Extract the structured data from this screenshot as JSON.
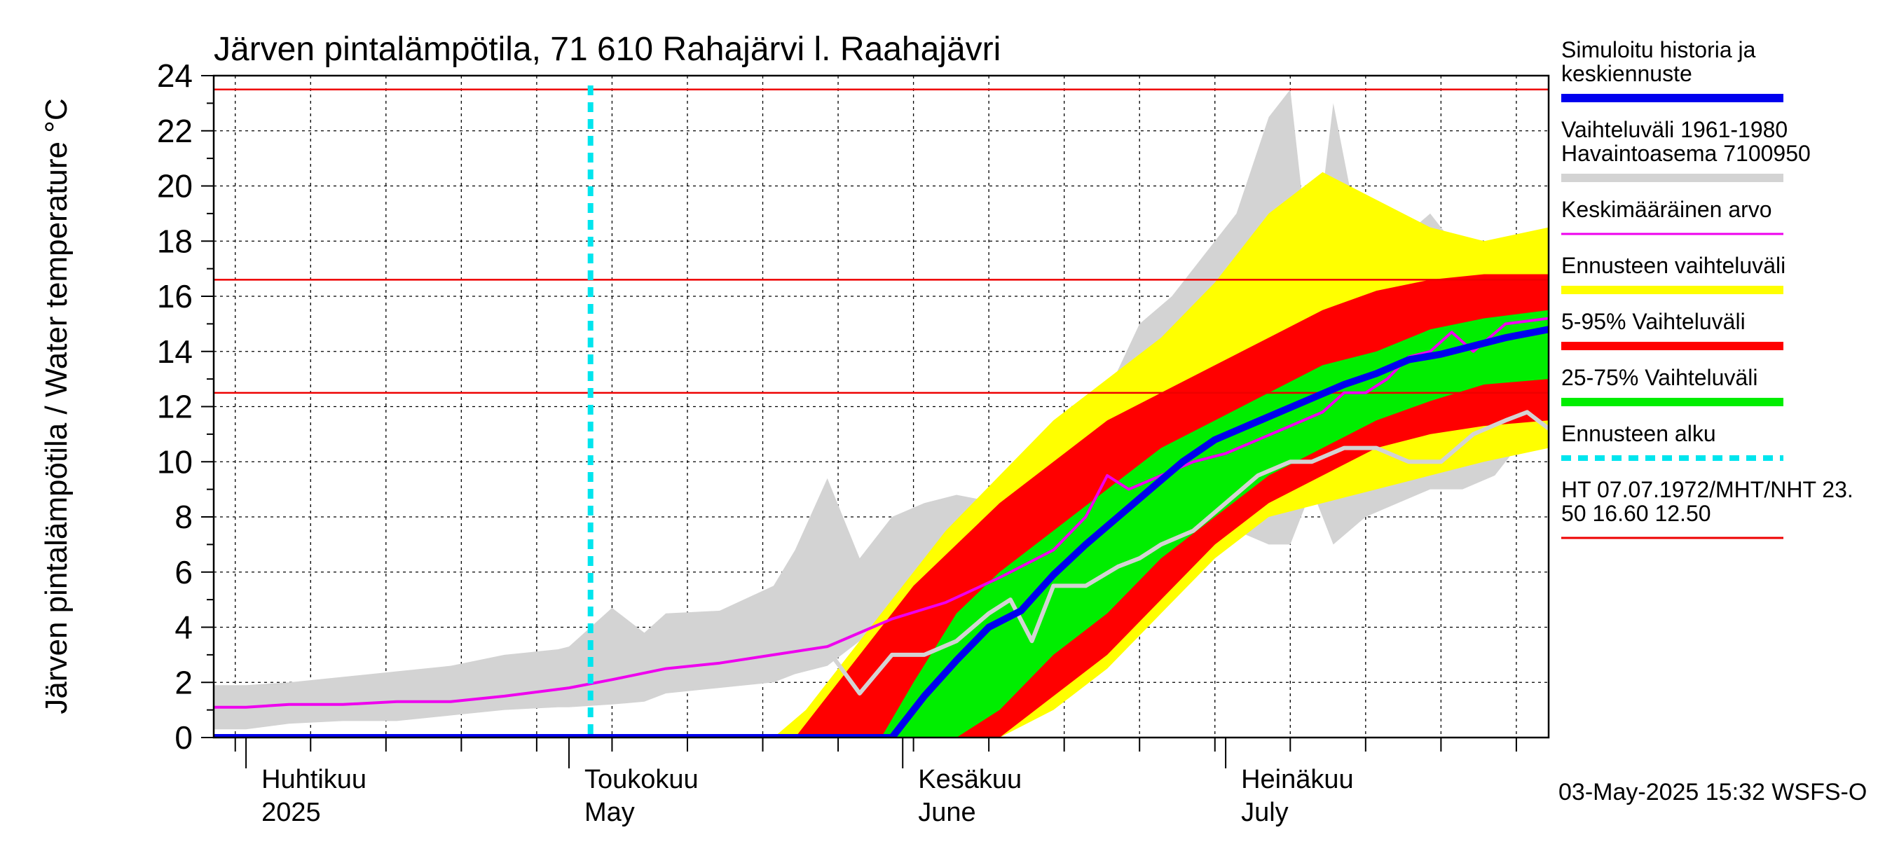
{
  "chart_data": {
    "type": "area",
    "title": "Järven pintalämpötila, 71 610 Rahajärvi l. Raahajävri",
    "ylabel": "Järven pintalämpötila / Water temperature °C",
    "ylim": [
      0,
      24
    ],
    "yticks": [
      0,
      2,
      4,
      6,
      8,
      10,
      12,
      14,
      16,
      18,
      20,
      22,
      24
    ],
    "xlim": [
      "2025-03-29",
      "2025-07-31"
    ],
    "grid": true,
    "months": [
      {
        "date": "2025-04-01",
        "fi": "Huhtikuu",
        "en": "2025"
      },
      {
        "date": "2025-05-01",
        "fi": "Toukokuu",
        "en": "May"
      },
      {
        "date": "2025-06-01",
        "fi": "Kesäkuu",
        "en": "June"
      },
      {
        "date": "2025-07-01",
        "fi": "Heinäkuu",
        "en": "July"
      }
    ],
    "forecast_start": "2025-05-03",
    "thresholds": [
      23.5,
      16.6,
      12.5
    ],
    "timestamp": "03-May-2025 15:32 WSFS-O",
    "legend_position": "right",
    "legend": [
      {
        "key": "sim",
        "label1": "Simuloitu historia ja",
        "label2": "keskiennuste",
        "color": "#0000ee",
        "style": "thick"
      },
      {
        "key": "hist",
        "label1": "Vaihteluväli 1961-1980",
        "label2": " Havaintoasema 7100950",
        "color": "#d3d3d3",
        "style": "thick"
      },
      {
        "key": "mean",
        "label1": "Keskimääräinen arvo",
        "label2": "",
        "color": "#ee00ee",
        "style": "thin"
      },
      {
        "key": "fc_range",
        "label1": "Ennusteen vaihteluväli",
        "label2": "",
        "color": "#ffff00",
        "style": "thick"
      },
      {
        "key": "p5_95",
        "label1": "5-95% Vaihteluväli",
        "label2": "",
        "color": "#ff0000",
        "style": "thick"
      },
      {
        "key": "p25_75",
        "label1": "25-75% Vaihteluväli",
        "label2": "",
        "color": "#00ee00",
        "style": "thick"
      },
      {
        "key": "fc_start",
        "label1": "Ennusteen alku",
        "label2": "",
        "color": "#00e5ee",
        "style": "dashed"
      },
      {
        "key": "thr",
        "label1": "HT 07.07.1972/MHT/NHT 23.",
        "label2": "50 16.60 12.50",
        "color": "#ee0000",
        "style": "thin"
      }
    ],
    "colors": {
      "hist_band": "#d3d3d3",
      "hist_line": "#d3d3d3",
      "yellow": "#ffff00",
      "red": "#ff0000",
      "green": "#00ee00",
      "median": "#0000ee",
      "mean": "#ee00ee",
      "threshold": "#ee0000",
      "forecast_start": "#00e5ee"
    },
    "series": [
      {
        "key": "hist_band",
        "x": [
          "2025-03-29",
          "2025-04-01",
          "2025-04-05",
          "2025-04-10",
          "2025-04-15",
          "2025-04-20",
          "2025-04-25",
          "2025-04-30",
          "2025-05-01",
          "2025-05-05",
          "2025-05-08",
          "2025-05-10",
          "2025-05-15",
          "2025-05-20",
          "2025-05-22",
          "2025-05-25",
          "2025-05-28",
          "2025-05-31",
          "2025-06-03",
          "2025-06-06",
          "2025-06-10",
          "2025-06-13",
          "2025-06-16",
          "2025-06-20",
          "2025-06-23",
          "2025-06-26",
          "2025-06-29",
          "2025-07-02",
          "2025-07-05",
          "2025-07-07",
          "2025-07-09",
          "2025-07-11",
          "2025-07-14",
          "2025-07-17",
          "2025-07-20",
          "2025-07-23",
          "2025-07-26",
          "2025-07-28",
          "2025-07-31"
        ],
        "upper": [
          1.9,
          1.9,
          2.0,
          2.2,
          2.4,
          2.6,
          3.0,
          3.2,
          3.3,
          4.7,
          3.8,
          4.5,
          4.6,
          5.5,
          6.8,
          9.4,
          6.5,
          8.0,
          8.5,
          8.8,
          8.5,
          9.0,
          11.0,
          12.5,
          15.0,
          16.0,
          17.5,
          19.0,
          22.5,
          23.5,
          16.5,
          23.0,
          17.0,
          18.0,
          19.0,
          17.5,
          18.0,
          17.8,
          18.0
        ],
        "lower": [
          0.3,
          0.3,
          0.5,
          0.6,
          0.6,
          0.8,
          1.0,
          1.1,
          1.1,
          1.2,
          1.3,
          1.6,
          1.8,
          2.0,
          2.3,
          2.6,
          3.5,
          4.0,
          4.0,
          4.0,
          4.5,
          4.5,
          5.0,
          6.0,
          7.0,
          7.5,
          8.0,
          7.5,
          7.0,
          7.0,
          9.0,
          7.0,
          8.0,
          8.5,
          9.0,
          9.0,
          9.5,
          10.5,
          10.5
        ]
      },
      {
        "key": "hist_line",
        "x": [
          "2025-05-25",
          "2025-05-28",
          "2025-05-31",
          "2025-06-03",
          "2025-06-06",
          "2025-06-09",
          "2025-06-11",
          "2025-06-13",
          "2025-06-15",
          "2025-06-18",
          "2025-06-21",
          "2025-06-23",
          "2025-06-25",
          "2025-06-28",
          "2025-07-01",
          "2025-07-04",
          "2025-07-07",
          "2025-07-09",
          "2025-07-12",
          "2025-07-15",
          "2025-07-18",
          "2025-07-21",
          "2025-07-24",
          "2025-07-27",
          "2025-07-29",
          "2025-07-31"
        ],
        "values": [
          3.2,
          1.6,
          3.0,
          3.0,
          3.5,
          4.5,
          5.0,
          3.5,
          5.5,
          5.5,
          6.2,
          6.5,
          7.0,
          7.5,
          8.5,
          9.5,
          10.0,
          10.0,
          10.5,
          10.5,
          10.0,
          10.0,
          11.0,
          11.5,
          11.8,
          11.2
        ]
      },
      {
        "key": "yellow",
        "x": [
          "2025-05-20",
          "2025-05-23",
          "2025-05-27",
          "2025-06-01",
          "2025-06-05",
          "2025-06-10",
          "2025-06-15",
          "2025-06-20",
          "2025-06-25",
          "2025-06-30",
          "2025-07-05",
          "2025-07-10",
          "2025-07-15",
          "2025-07-20",
          "2025-07-25",
          "2025-07-31"
        ],
        "upper": [
          0,
          1.0,
          3.0,
          5.5,
          7.5,
          9.5,
          11.5,
          13.0,
          14.5,
          16.5,
          19.0,
          20.5,
          19.5,
          18.5,
          18.0,
          18.5
        ],
        "lower": [
          0,
          0,
          0,
          0,
          0,
          0,
          1.0,
          2.5,
          4.5,
          6.5,
          8.0,
          8.5,
          9.0,
          9.5,
          10.0,
          10.5
        ]
      },
      {
        "key": "red",
        "x": [
          "2025-05-22",
          "2025-05-25",
          "2025-05-29",
          "2025-06-02",
          "2025-06-06",
          "2025-06-10",
          "2025-06-15",
          "2025-06-20",
          "2025-06-25",
          "2025-06-30",
          "2025-07-05",
          "2025-07-10",
          "2025-07-15",
          "2025-07-20",
          "2025-07-25",
          "2025-07-31"
        ],
        "upper": [
          0,
          1.5,
          3.5,
          5.5,
          7.0,
          8.5,
          10.0,
          11.5,
          12.5,
          13.5,
          14.5,
          15.5,
          16.2,
          16.6,
          16.8,
          16.8
        ],
        "lower": [
          0,
          0,
          0,
          0,
          0,
          0,
          1.5,
          3.0,
          5.0,
          7.0,
          8.5,
          9.5,
          10.5,
          11.0,
          11.3,
          11.5
        ]
      },
      {
        "key": "green",
        "x": [
          "2025-05-30",
          "2025-06-02",
          "2025-06-06",
          "2025-06-10",
          "2025-06-15",
          "2025-06-20",
          "2025-06-25",
          "2025-06-30",
          "2025-07-05",
          "2025-07-10",
          "2025-07-15",
          "2025-07-20",
          "2025-07-25",
          "2025-07-31"
        ],
        "upper": [
          0,
          2.0,
          4.5,
          6.0,
          7.5,
          9.0,
          10.5,
          11.5,
          12.5,
          13.5,
          14.0,
          14.8,
          15.2,
          15.5
        ],
        "lower": [
          0,
          0,
          0,
          1.0,
          3.0,
          4.5,
          6.5,
          8.0,
          9.5,
          10.5,
          11.5,
          12.2,
          12.8,
          13.0
        ]
      },
      {
        "key": "median",
        "x": [
          "2025-03-29",
          "2025-05-31",
          "2025-06-03",
          "2025-06-06",
          "2025-06-09",
          "2025-06-12",
          "2025-06-15",
          "2025-06-18",
          "2025-06-21",
          "2025-06-24",
          "2025-06-27",
          "2025-06-30",
          "2025-07-03",
          "2025-07-06",
          "2025-07-09",
          "2025-07-12",
          "2025-07-15",
          "2025-07-18",
          "2025-07-21",
          "2025-07-24",
          "2025-07-27",
          "2025-07-31"
        ],
        "values": [
          0,
          0,
          1.5,
          2.8,
          4.0,
          4.6,
          5.9,
          7.0,
          8.0,
          9.0,
          10.0,
          10.8,
          11.3,
          11.8,
          12.3,
          12.8,
          13.2,
          13.7,
          13.9,
          14.2,
          14.5,
          14.8
        ]
      },
      {
        "key": "mean",
        "x": [
          "2025-03-29",
          "2025-04-01",
          "2025-04-05",
          "2025-04-10",
          "2025-04-15",
          "2025-04-20",
          "2025-04-25",
          "2025-05-01",
          "2025-05-05",
          "2025-05-10",
          "2025-05-15",
          "2025-05-20",
          "2025-05-25",
          "2025-05-28",
          "2025-05-31",
          "2025-06-05",
          "2025-06-10",
          "2025-06-15",
          "2025-06-18",
          "2025-06-20",
          "2025-06-22",
          "2025-06-25",
          "2025-06-28",
          "2025-07-01",
          "2025-07-04",
          "2025-07-07",
          "2025-07-10",
          "2025-07-12",
          "2025-07-14",
          "2025-07-16",
          "2025-07-18",
          "2025-07-20",
          "2025-07-22",
          "2025-07-24",
          "2025-07-27",
          "2025-07-31"
        ],
        "values": [
          1.1,
          1.1,
          1.2,
          1.2,
          1.3,
          1.3,
          1.5,
          1.8,
          2.1,
          2.5,
          2.7,
          3.0,
          3.3,
          3.8,
          4.3,
          4.9,
          5.8,
          6.8,
          8.0,
          9.5,
          9.0,
          9.5,
          10.0,
          10.3,
          10.8,
          11.3,
          11.8,
          12.5,
          12.5,
          13.0,
          13.8,
          14.0,
          14.7,
          14.0,
          15.0,
          15.2
        ]
      }
    ]
  }
}
